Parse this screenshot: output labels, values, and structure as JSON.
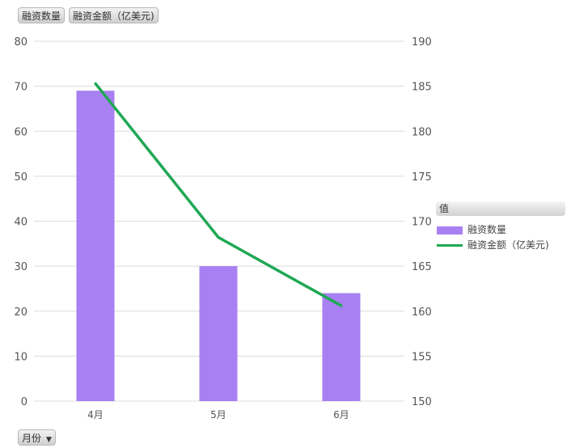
{
  "fields": {
    "count_label": "融资数量",
    "amount_label": "融资金额（亿美元)",
    "month_label": "月份",
    "dropdown_icon": "caret-down-icon"
  },
  "legend": {
    "title": "值"
  },
  "colors": {
    "bar": "#a880f2",
    "line": "#1fa854",
    "grid": "#dcdcdc",
    "axis_text": "#555555"
  },
  "chart_data": {
    "type": "bar",
    "categories": [
      "4月",
      "5月",
      "6月"
    ],
    "series": [
      {
        "name": "融资数量",
        "type": "bar",
        "axis": "left",
        "values": [
          69,
          30,
          24
        ]
      },
      {
        "name": "融资金额（亿美元)",
        "type": "line",
        "axis": "right",
        "values": [
          185.3,
          168.2,
          160.6
        ]
      }
    ],
    "y_left": {
      "min": 0,
      "max": 80,
      "ticks": [
        0,
        10,
        20,
        30,
        40,
        50,
        60,
        70,
        80
      ]
    },
    "y_right": {
      "min": 150,
      "max": 190,
      "ticks": [
        150,
        155,
        160,
        165,
        170,
        175,
        180,
        185,
        190
      ]
    },
    "grid": true,
    "legend_position": "right"
  }
}
